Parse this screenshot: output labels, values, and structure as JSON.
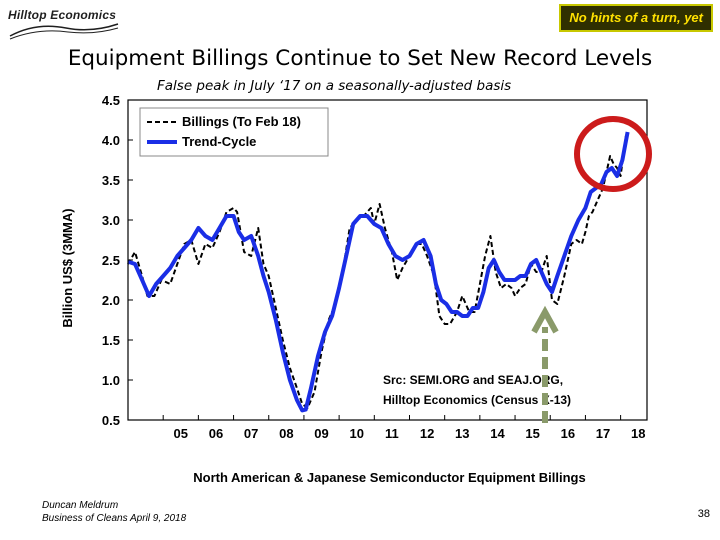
{
  "header": {
    "logo_text": "Hilltop Economics",
    "badge": "No hints of a turn, yet",
    "title": "Equipment Billings Continue to Set New Record Levels",
    "subtitle": "False peak in July ‘17 on a seasonally-adjusted basis"
  },
  "footer": {
    "author": "Duncan Meldrum",
    "event": "Business of Cleans April 9, 2018",
    "page": "38"
  },
  "colors": {
    "trend": "#1a2ee6",
    "billings": "#000000",
    "circle": "#cc1b1b",
    "arrow": "#8a9a6a",
    "badge_bg": "#2f2f00",
    "badge_text": "#ffe100"
  },
  "chart_data": {
    "type": "line",
    "title": "North American & Japanese Semiconductor Equipment Billings",
    "ylabel": "Billion US$ (3MMA)",
    "ylim": [
      0.5,
      4.5
    ],
    "yticks": [
      "4.5",
      "4.0",
      "3.5",
      "3.0",
      "2.5",
      "2.0",
      "1.5",
      "1.0",
      "0.5"
    ],
    "xlim": [
      2004.0,
      2018.75
    ],
    "xticks": [
      "05",
      "06",
      "07",
      "08",
      "09",
      "10",
      "11",
      "12",
      "13",
      "14",
      "15",
      "16",
      "17",
      "18"
    ],
    "legend_position": "top-left",
    "annotation": [
      "Src: SEMI.ORG and SEAJ.ORG,",
      "Hilltop Economics (Census X-13)"
    ],
    "series": [
      {
        "name": "Billings (To Feb 18)",
        "style": "dashed",
        "x": [
          2004.0,
          2004.2,
          2004.4,
          2004.55,
          2004.75,
          2004.95,
          2005.2,
          2005.4,
          2005.6,
          2005.8,
          2006.0,
          2006.2,
          2006.4,
          2006.6,
          2006.8,
          2007.0,
          2007.1,
          2007.3,
          2007.5,
          2007.7,
          2007.85,
          2008.0,
          2008.2,
          2008.4,
          2008.6,
          2008.8,
          2008.95,
          2009.1,
          2009.3,
          2009.5,
          2009.7,
          2009.9,
          2010.1,
          2010.3,
          2010.5,
          2010.7,
          2010.9,
          2011.0,
          2011.15,
          2011.3,
          2011.5,
          2011.65,
          2011.8,
          2012.0,
          2012.2,
          2012.35,
          2012.5,
          2012.7,
          2012.85,
          2013.0,
          2013.15,
          2013.35,
          2013.5,
          2013.7,
          2013.85,
          2014.0,
          2014.15,
          2014.3,
          2014.45,
          2014.6,
          2014.75,
          2014.9,
          2015.0,
          2015.15,
          2015.3,
          2015.45,
          2015.6,
          2015.75,
          2015.9,
          2016.05,
          2016.2,
          2016.4,
          2016.6,
          2016.75,
          2016.9,
          2017.0,
          2017.1,
          2017.2,
          2017.35,
          2017.5,
          2017.6,
          2017.7,
          2017.8,
          2017.9,
          2018.0,
          2018.15
        ],
        "y": [
          2.45,
          2.6,
          2.3,
          2.05,
          2.05,
          2.25,
          2.2,
          2.45,
          2.7,
          2.75,
          2.45,
          2.7,
          2.65,
          2.85,
          3.1,
          3.15,
          3.1,
          2.6,
          2.55,
          2.9,
          2.45,
          2.3,
          1.9,
          1.5,
          1.15,
          0.9,
          0.7,
          0.65,
          0.85,
          1.35,
          1.75,
          1.95,
          2.35,
          2.9,
          3.0,
          3.05,
          3.15,
          2.95,
          3.2,
          2.9,
          2.6,
          2.25,
          2.4,
          2.55,
          2.7,
          2.7,
          2.55,
          2.3,
          1.8,
          1.7,
          1.7,
          1.85,
          2.05,
          1.85,
          1.85,
          2.2,
          2.55,
          2.8,
          2.35,
          2.15,
          2.2,
          2.15,
          2.05,
          2.15,
          2.2,
          2.45,
          2.35,
          2.35,
          2.55,
          2.0,
          1.95,
          2.3,
          2.7,
          2.75,
          2.7,
          2.85,
          3.05,
          3.1,
          3.25,
          3.4,
          3.6,
          3.8,
          3.7,
          3.65,
          3.55,
          4.05
        ]
      },
      {
        "name": "Trend-Cycle",
        "style": "solid",
        "x": [
          2004.0,
          2004.2,
          2004.4,
          2004.6,
          2004.8,
          2005.0,
          2005.2,
          2005.4,
          2005.6,
          2005.8,
          2006.0,
          2006.2,
          2006.4,
          2006.6,
          2006.8,
          2007.0,
          2007.15,
          2007.3,
          2007.5,
          2007.7,
          2007.85,
          2008.0,
          2008.2,
          2008.4,
          2008.6,
          2008.8,
          2008.95,
          2009.05,
          2009.2,
          2009.4,
          2009.6,
          2009.8,
          2010.0,
          2010.2,
          2010.4,
          2010.6,
          2010.8,
          2011.0,
          2011.2,
          2011.4,
          2011.6,
          2011.8,
          2012.0,
          2012.2,
          2012.4,
          2012.6,
          2012.75,
          2012.9,
          2013.05,
          2013.2,
          2013.35,
          2013.5,
          2013.65,
          2013.8,
          2013.95,
          2014.1,
          2014.25,
          2014.4,
          2014.55,
          2014.7,
          2014.85,
          2015.0,
          2015.15,
          2015.3,
          2015.45,
          2015.6,
          2015.75,
          2015.9,
          2016.05,
          2016.2,
          2016.4,
          2016.6,
          2016.8,
          2017.0,
          2017.15,
          2017.3,
          2017.45,
          2017.6,
          2017.75,
          2017.9,
          2018.05,
          2018.2
        ],
        "y": [
          2.48,
          2.45,
          2.25,
          2.05,
          2.2,
          2.3,
          2.4,
          2.55,
          2.65,
          2.75,
          2.9,
          2.8,
          2.75,
          2.9,
          3.05,
          3.05,
          2.85,
          2.75,
          2.8,
          2.55,
          2.3,
          2.1,
          1.75,
          1.35,
          1.0,
          0.75,
          0.62,
          0.63,
          0.9,
          1.3,
          1.6,
          1.8,
          2.15,
          2.55,
          2.95,
          3.05,
          3.05,
          2.95,
          2.9,
          2.7,
          2.55,
          2.5,
          2.55,
          2.7,
          2.75,
          2.55,
          2.2,
          2.0,
          1.95,
          1.85,
          1.85,
          1.8,
          1.8,
          1.9,
          1.9,
          2.1,
          2.4,
          2.5,
          2.35,
          2.25,
          2.25,
          2.25,
          2.3,
          2.3,
          2.45,
          2.5,
          2.35,
          2.2,
          2.1,
          2.3,
          2.55,
          2.8,
          3.0,
          3.15,
          3.35,
          3.4,
          3.45,
          3.6,
          3.65,
          3.55,
          3.75,
          4.1
        ]
      }
    ]
  }
}
